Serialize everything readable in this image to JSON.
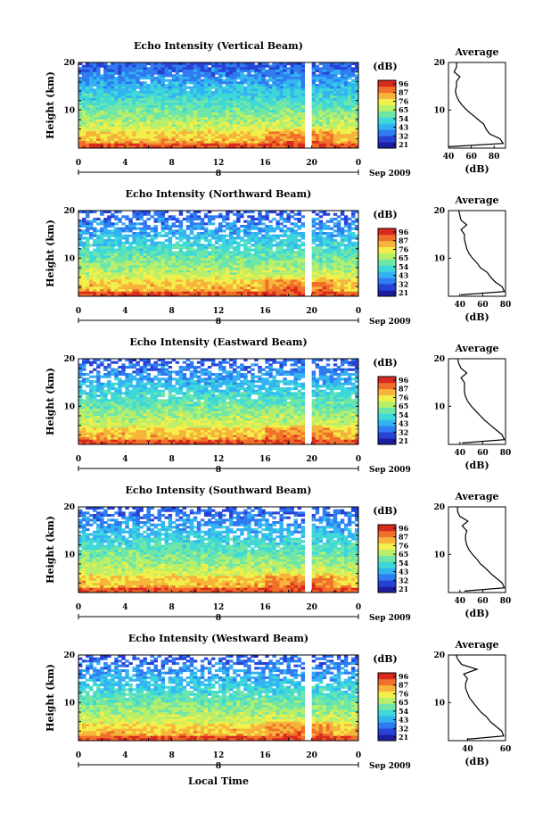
{
  "figure": {
    "x_axis_label": "Local Time",
    "date_label": "Sep 2009",
    "day_marker": "8"
  },
  "colorbar": {
    "unit_label": "(dB)",
    "colors": [
      "#1d1fa0",
      "#2743d6",
      "#2f7bf0",
      "#33b3f2",
      "#3fd8d8",
      "#6fe6a8",
      "#b8ef6a",
      "#f3ef4a",
      "#f7b43a",
      "#f0702a",
      "#d82a1e"
    ]
  },
  "chart_data": [
    {
      "type": "heatmap",
      "title": "Echo Intensity (Vertical Beam)",
      "ylabel": "Height (km)",
      "x_ticks": [
        "0",
        "4",
        "8",
        "12",
        "16",
        "20",
        "0"
      ],
      "y_ticks": [
        "10",
        "20"
      ],
      "xlim": [
        0,
        24
      ],
      "ylim": [
        2,
        20
      ],
      "color_scale": {
        "unit": "dB",
        "tick_labels": [
          "96",
          "87",
          "76",
          "65",
          "54",
          "43",
          "32",
          "21"
        ]
      },
      "missing_data_hour": 19.6,
      "average_profile": {
        "title": "Average",
        "xlabel": "(dB)",
        "xlim": [
          40,
          90
        ],
        "x_ticks": [
          "40",
          "60",
          "80"
        ],
        "height_km": [
          2.3,
          3,
          4,
          5,
          6,
          7,
          8,
          9,
          10,
          11,
          12,
          13,
          14,
          15,
          16,
          17,
          18,
          19,
          20
        ],
        "db": [
          40,
          88,
          85,
          76,
          73,
          71,
          66,
          61,
          56,
          52,
          49,
          47,
          46,
          47,
          47,
          50,
          45,
          47,
          47
        ]
      }
    },
    {
      "type": "heatmap",
      "title": "Echo Intensity (Northward Beam)",
      "ylabel": "Height (km)",
      "x_ticks": [
        "0",
        "4",
        "8",
        "12",
        "16",
        "20",
        "0"
      ],
      "y_ticks": [
        "10",
        "20"
      ],
      "xlim": [
        0,
        24
      ],
      "ylim": [
        2,
        20
      ],
      "color_scale": {
        "unit": "dB",
        "tick_labels": [
          "96",
          "87",
          "76",
          "65",
          "54",
          "43",
          "32",
          "21"
        ]
      },
      "missing_data_hour": 19.6,
      "average_profile": {
        "title": "Average",
        "xlabel": "(dB)",
        "xlim": [
          30,
          80
        ],
        "x_ticks": [
          "40",
          "60",
          "80"
        ],
        "height_km": [
          2.3,
          3,
          4,
          5,
          6,
          7,
          8,
          9,
          10,
          11,
          12,
          13,
          14,
          15,
          16,
          17,
          18,
          19,
          20
        ],
        "db": [
          41,
          79,
          77,
          71,
          67,
          64,
          58,
          55,
          51,
          48,
          46,
          45,
          44,
          44,
          41,
          46,
          41,
          40,
          39
        ]
      }
    },
    {
      "type": "heatmap",
      "title": "Echo Intensity (Eastward Beam)",
      "ylabel": "Height (km)",
      "x_ticks": [
        "0",
        "4",
        "8",
        "12",
        "16",
        "20",
        "0"
      ],
      "y_ticks": [
        "10",
        "20"
      ],
      "xlim": [
        0,
        24
      ],
      "ylim": [
        2,
        20
      ],
      "color_scale": {
        "unit": "dB",
        "tick_labels": [
          "96",
          "87",
          "76",
          "65",
          "54",
          "43",
          "32",
          "21"
        ]
      },
      "missing_data_hour": 19.6,
      "average_profile": {
        "title": "Average",
        "xlabel": "(dB)",
        "xlim": [
          30,
          80
        ],
        "x_ticks": [
          "40",
          "60",
          "80"
        ],
        "height_km": [
          2.3,
          3,
          4,
          5,
          6,
          7,
          8,
          9,
          10,
          11,
          12,
          13,
          14,
          15,
          16,
          17,
          18,
          19,
          20
        ],
        "db": [
          42,
          79,
          77,
          72,
          67,
          62,
          58,
          54,
          50,
          47,
          45,
          44,
          44,
          44,
          41,
          46,
          41,
          39,
          38
        ]
      }
    },
    {
      "type": "heatmap",
      "title": "Echo Intensity (Southward Beam)",
      "ylabel": "Height (km)",
      "x_ticks": [
        "0",
        "4",
        "8",
        "12",
        "16",
        "20",
        "0"
      ],
      "y_ticks": [
        "10",
        "20"
      ],
      "xlim": [
        0,
        24
      ],
      "ylim": [
        2,
        20
      ],
      "color_scale": {
        "unit": "dB",
        "tick_labels": [
          "96",
          "87",
          "76",
          "65",
          "54",
          "43",
          "32",
          "21"
        ]
      },
      "missing_data_hour": 19.6,
      "average_profile": {
        "title": "Average",
        "xlabel": "(dB)",
        "xlim": [
          30,
          80
        ],
        "x_ticks": [
          "40",
          "60",
          "80"
        ],
        "height_km": [
          2.3,
          3,
          4,
          5,
          6,
          7,
          8,
          9,
          10,
          11,
          12,
          13,
          14,
          15,
          16,
          17,
          18,
          19,
          20
        ],
        "db": [
          44,
          79,
          77,
          72,
          67,
          63,
          58,
          55,
          51,
          48,
          46,
          45,
          45,
          46,
          42,
          47,
          40,
          38,
          38
        ]
      }
    },
    {
      "type": "heatmap",
      "title": "Echo Intensity (Westward Beam)",
      "ylabel": "Height (km)",
      "x_ticks": [
        "0",
        "4",
        "8",
        "12",
        "16",
        "20",
        "0"
      ],
      "y_ticks": [
        "10",
        "20"
      ],
      "xlim": [
        0,
        24
      ],
      "ylim": [
        2,
        20
      ],
      "color_scale": {
        "unit": "dB",
        "tick_labels": [
          "96",
          "87",
          "76",
          "65",
          "54",
          "43",
          "32",
          "21"
        ]
      },
      "missing_data_hour": 19.6,
      "average_profile": {
        "title": "Average",
        "xlabel": "(dB)",
        "xlim": [
          30,
          60
        ],
        "x_ticks": [
          "40",
          "60"
        ],
        "height_km": [
          2.3,
          3,
          4,
          5,
          6,
          7,
          8,
          9,
          10,
          11,
          12,
          13,
          14,
          15,
          16,
          17,
          18,
          19,
          20
        ],
        "db": [
          40,
          59,
          58,
          55,
          52,
          50,
          47,
          45,
          43,
          41,
          40,
          39,
          39,
          40,
          38,
          45,
          37,
          35,
          34
        ]
      }
    }
  ]
}
